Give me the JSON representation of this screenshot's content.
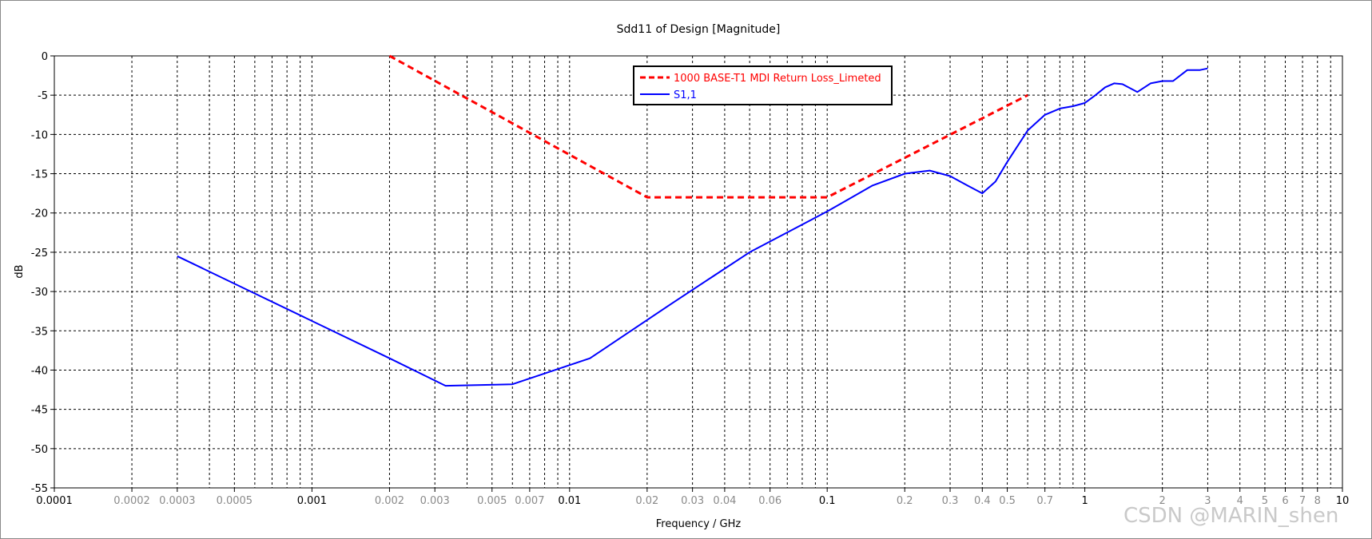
{
  "chart_data": {
    "type": "line",
    "title": "Sdd11 of Design [Magnitude]",
    "xlabel": "Frequency / GHz",
    "ylabel": "dB",
    "xscale": "log",
    "xlim": [
      0.0001,
      10
    ],
    "ylim": [
      -55,
      0
    ],
    "grid": true,
    "legend_position": "top-center",
    "x_ticks_major": [
      "0.0001",
      "0.001",
      "0.01",
      "0.1",
      "1",
      "10"
    ],
    "x_ticks_minor": [
      "0.0002",
      "0.0003",
      "0.0005",
      "0.002",
      "0.003",
      "0.005",
      "0.007",
      "0.02",
      "0.03",
      "0.04",
      "0.06",
      "0.2",
      "0.3",
      "0.4",
      "0.5",
      "0.7",
      "2",
      "3",
      "4",
      "5",
      "6",
      "7",
      "8"
    ],
    "y_ticks": [
      "0",
      "-5",
      "-10",
      "-15",
      "-20",
      "-25",
      "-30",
      "-35",
      "-40",
      "-45",
      "-50",
      "-55"
    ],
    "series": [
      {
        "name": "1000 BASE-T1 MDI Return Loss_Limeted",
        "color": "#ff0000",
        "style": "dashed",
        "x": [
          0.002,
          0.02,
          0.1,
          0.6
        ],
        "y": [
          0,
          -18,
          -18,
          -5
        ]
      },
      {
        "name": "S1,1",
        "color": "#0000ff",
        "style": "solid",
        "x": [
          0.0003,
          0.002,
          0.0033,
          0.006,
          0.012,
          0.025,
          0.05,
          0.1,
          0.15,
          0.2,
          0.25,
          0.3,
          0.35,
          0.4,
          0.45,
          0.5,
          0.6,
          0.7,
          0.8,
          0.9,
          1.0,
          1.1,
          1.2,
          1.3,
          1.4,
          1.6,
          1.8,
          2.0,
          2.2,
          2.5,
          2.8,
          3.0
        ],
        "y": [
          -25.5,
          -38.5,
          -42,
          -41.8,
          -38.5,
          -31.5,
          -25,
          -19.8,
          -16.5,
          -15,
          -14.6,
          -15.3,
          -16.5,
          -17.5,
          -16,
          -13.5,
          -9.5,
          -7.5,
          -6.7,
          -6.4,
          -6,
          -5,
          -4,
          -3.5,
          -3.6,
          -4.6,
          -3.5,
          -3.2,
          -3.2,
          -1.8,
          -1.8,
          -1.6
        ]
      }
    ]
  },
  "watermark": "CSDN @MARIN_shen"
}
